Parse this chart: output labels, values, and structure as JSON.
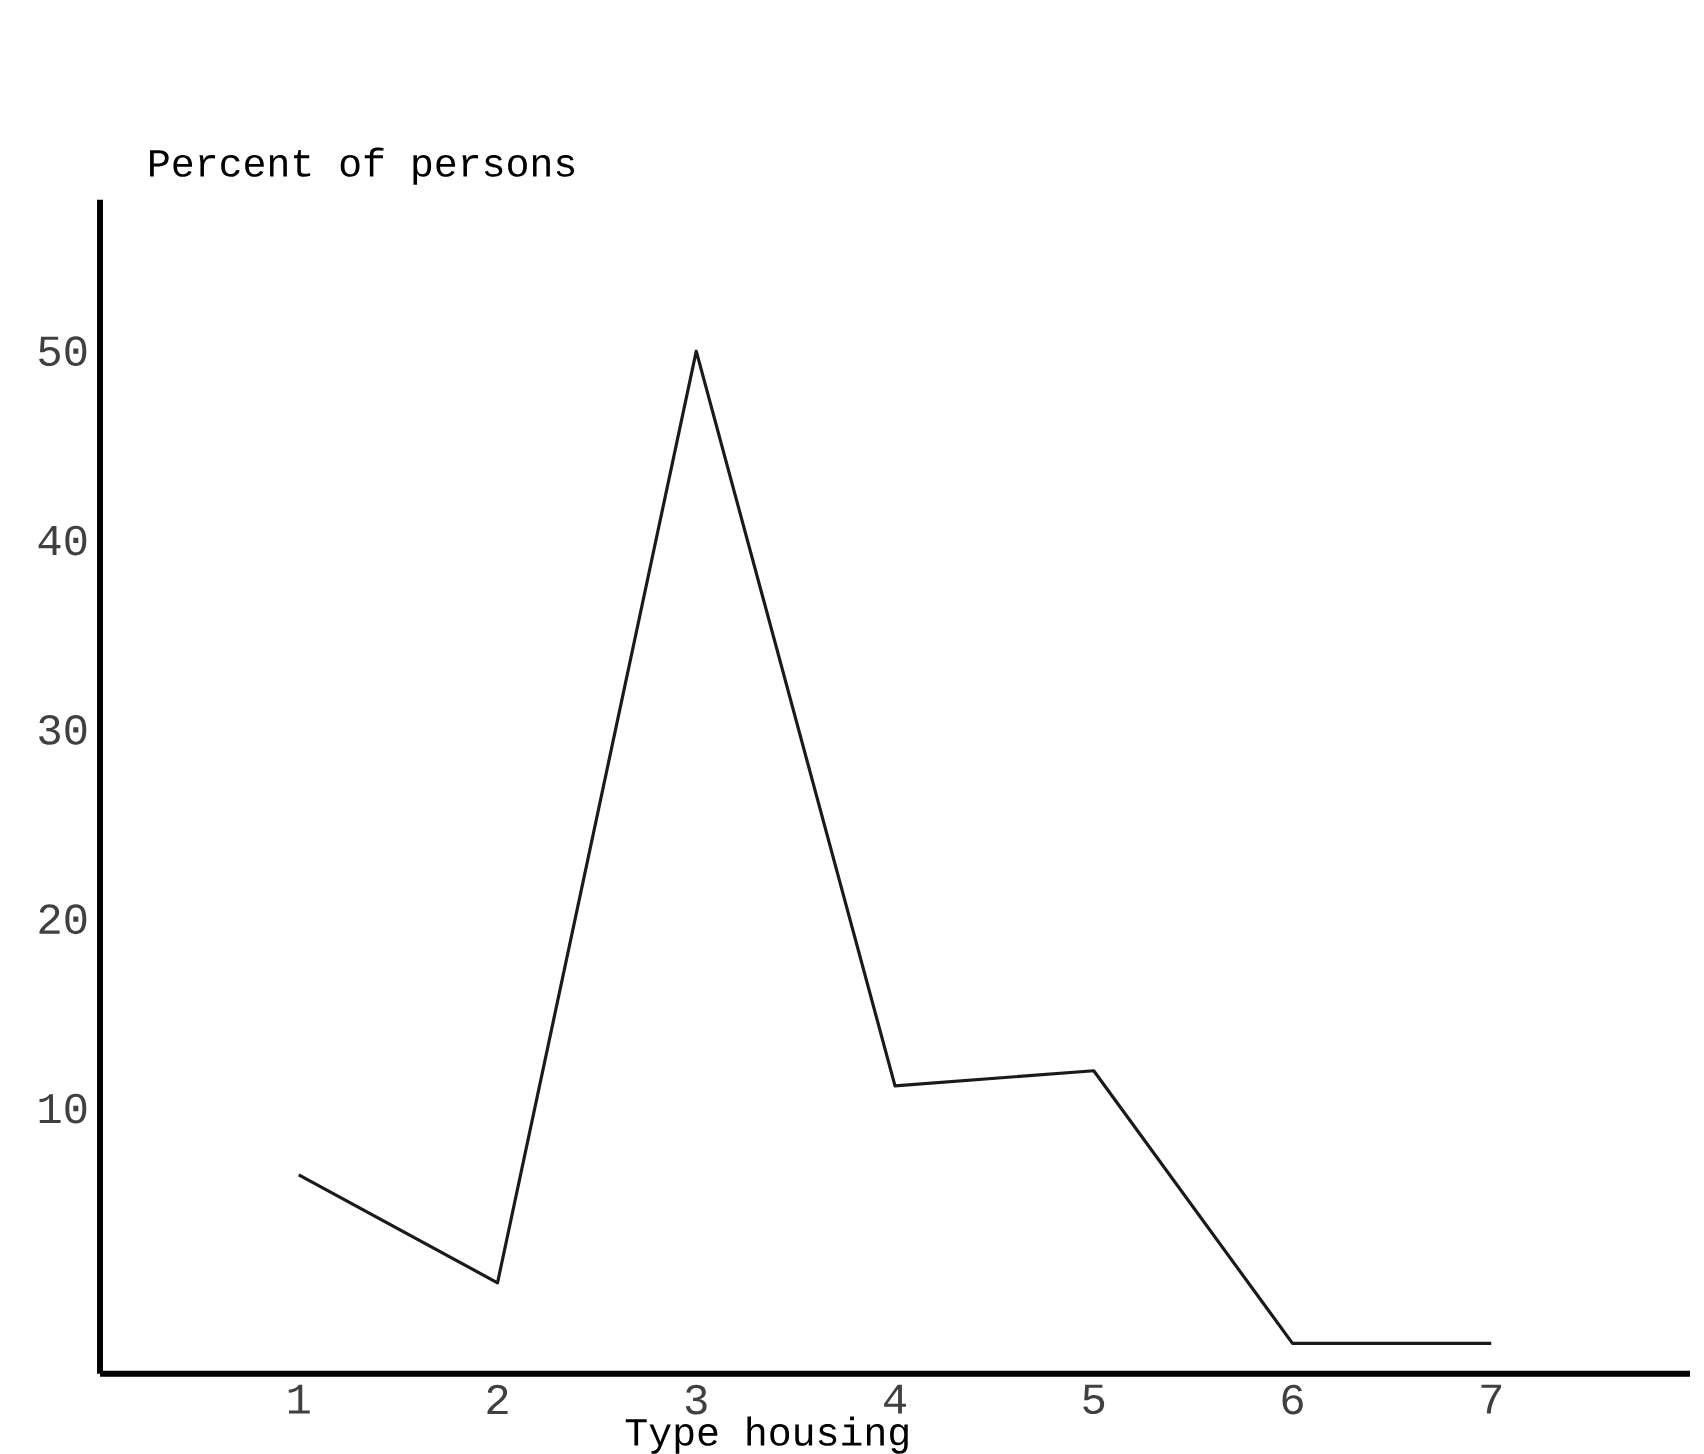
{
  "chart_data": {
    "type": "line",
    "ylabel": "Percent of persons",
    "xlabel": "Type housing",
    "x": [
      1,
      2,
      3,
      4,
      5,
      6,
      7
    ],
    "values": [
      6.5,
      0.8,
      50,
      11.2,
      12,
      -2.4,
      -2.4
    ],
    "color": "#1a1a1a",
    "xlim": [
      0,
      8
    ],
    "ylim": [
      -4,
      58
    ],
    "xticks": [
      1,
      2,
      3,
      4,
      5,
      6,
      7
    ],
    "yticks": [
      10,
      20,
      30,
      40,
      50
    ],
    "grid": false,
    "marker": "none",
    "line_style": "solid"
  }
}
